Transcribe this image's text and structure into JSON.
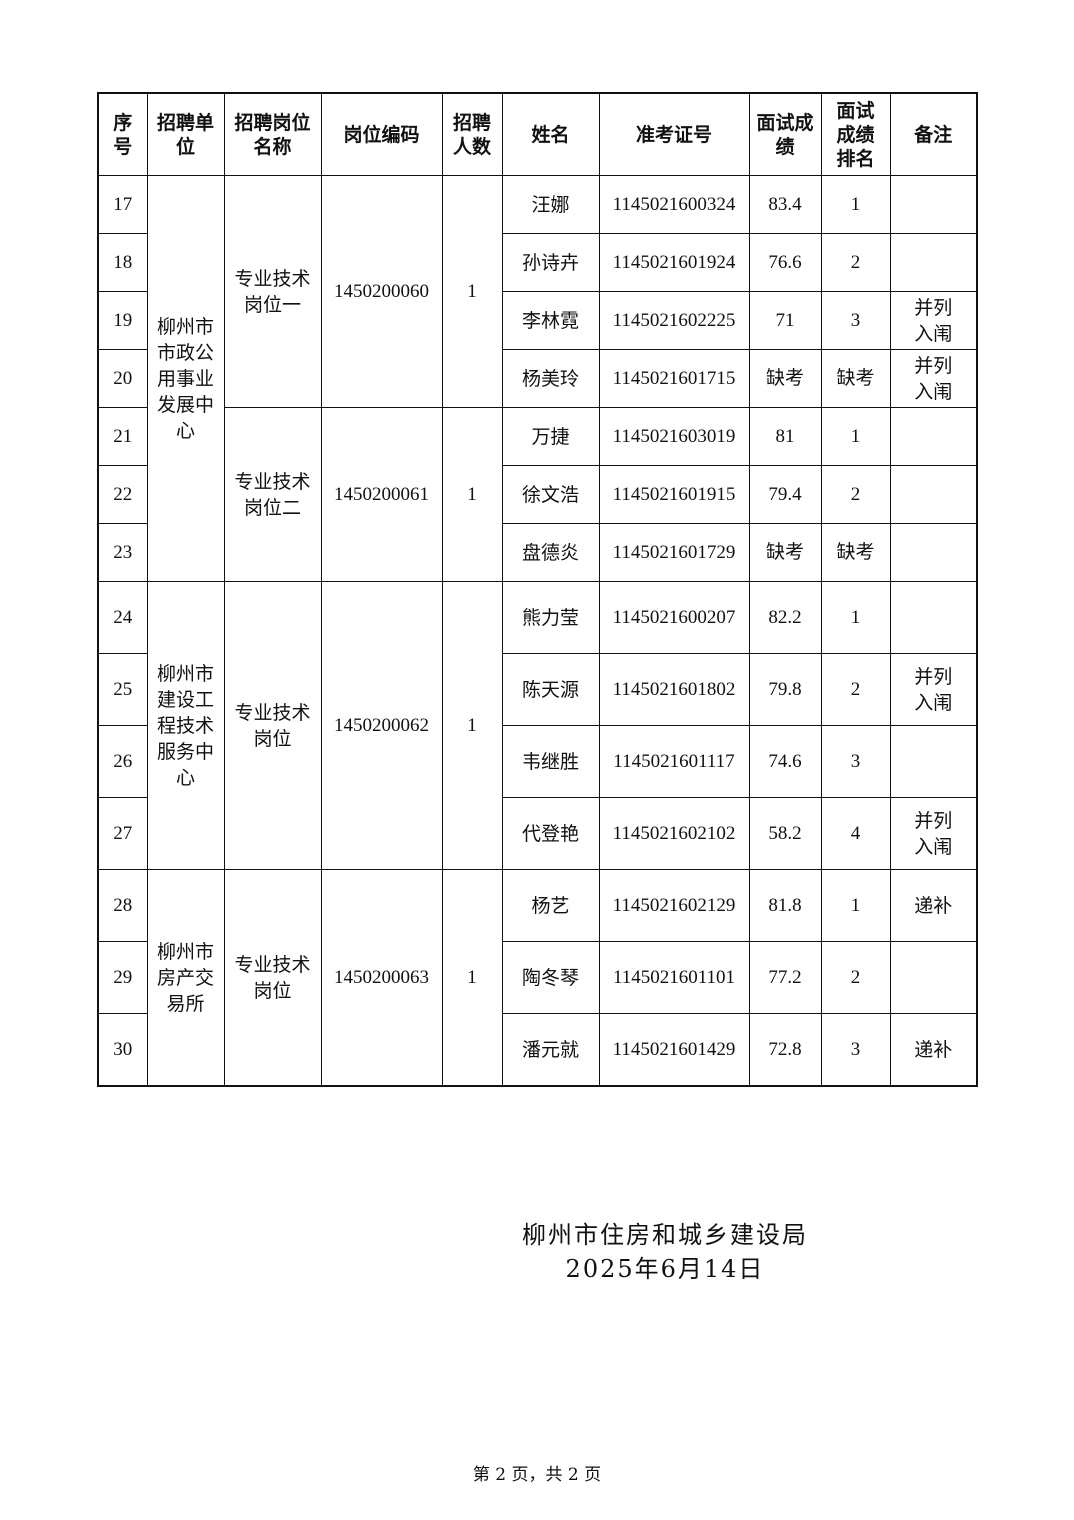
{
  "table": {
    "headers": [
      "序号",
      "招聘单位",
      "招聘岗位名称",
      "岗位编码",
      "招聘人数",
      "姓名",
      "准考证号",
      "面试成绩",
      "面试成绩排名",
      "备注"
    ],
    "groups": [
      {
        "unit": "柳州市市政公用事业发展中心",
        "size": "r1",
        "posts": [
          {
            "post": "专业技术岗位一",
            "code": "1450200060",
            "count": "1",
            "rows": [
              {
                "no": "17",
                "name": "汪娜",
                "id": "1145021600324",
                "score": "83.4",
                "rank": "1",
                "note": ""
              },
              {
                "no": "18",
                "name": "孙诗卉",
                "id": "1145021601924",
                "score": "76.6",
                "rank": "2",
                "note": ""
              },
              {
                "no": "19",
                "name": "李林霓",
                "id": "1145021602225",
                "score": "71",
                "rank": "3",
                "note": "并列入闱"
              },
              {
                "no": "20",
                "name": "杨美玲",
                "id": "1145021601715",
                "score": "缺考",
                "rank": "缺考",
                "note": "并列入闱"
              }
            ]
          },
          {
            "post": "专业技术岗位二",
            "code": "1450200061",
            "count": "1",
            "rows": [
              {
                "no": "21",
                "name": "万捷",
                "id": "1145021603019",
                "score": "81",
                "rank": "1",
                "note": ""
              },
              {
                "no": "22",
                "name": "徐文浩",
                "id": "1145021601915",
                "score": "79.4",
                "rank": "2",
                "note": ""
              },
              {
                "no": "23",
                "name": "盘德炎",
                "id": "1145021601729",
                "score": "缺考",
                "rank": "缺考",
                "note": ""
              }
            ]
          }
        ]
      },
      {
        "unit": "柳州市建设工程技术服务中心",
        "size": "r2",
        "posts": [
          {
            "post": "专业技术岗位",
            "code": "1450200062",
            "count": "1",
            "rows": [
              {
                "no": "24",
                "name": "熊力莹",
                "id": "1145021600207",
                "score": "82.2",
                "rank": "1",
                "note": ""
              },
              {
                "no": "25",
                "name": "陈天源",
                "id": "1145021601802",
                "score": "79.8",
                "rank": "2",
                "note": "并列入闱"
              },
              {
                "no": "26",
                "name": "韦继胜",
                "id": "1145021601117",
                "score": "74.6",
                "rank": "3",
                "note": ""
              },
              {
                "no": "27",
                "name": "代登艳",
                "id": "1145021602102",
                "score": "58.2",
                "rank": "4",
                "note": "并列入闱"
              }
            ]
          }
        ]
      },
      {
        "unit": "柳州市房产交易所",
        "size": "r2",
        "posts": [
          {
            "post": "专业技术岗位",
            "code": "1450200063",
            "count": "1",
            "rows": [
              {
                "no": "28",
                "name": "杨艺",
                "id": "1145021602129",
                "score": "81.8",
                "rank": "1",
                "note": "递补"
              },
              {
                "no": "29",
                "name": "陶冬琴",
                "id": "1145021601101",
                "score": "77.2",
                "rank": "2",
                "note": ""
              },
              {
                "no": "30",
                "name": "潘元就",
                "id": "1145021601429",
                "score": "72.8",
                "rank": "3",
                "note": "递补"
              }
            ]
          }
        ]
      }
    ]
  },
  "signature": {
    "org": "柳州市住房和城乡建设局",
    "date": "2025年6月14日"
  },
  "footer": "第 2 页，共 2 页"
}
